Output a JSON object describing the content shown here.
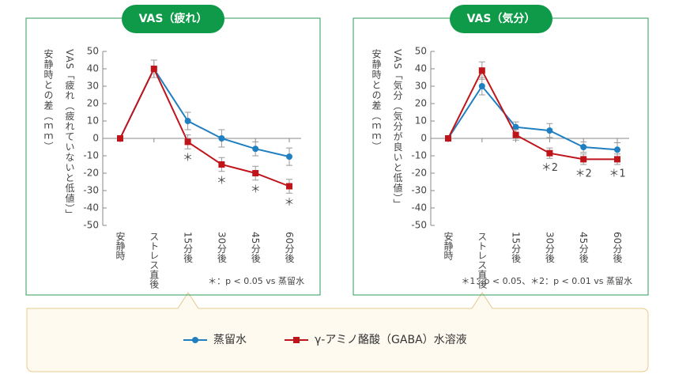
{
  "chart_data": [
    {
      "type": "line",
      "title": "VAS（疲れ）",
      "y_label": [
        "VAS「疲れ（疲れていないと低値）」",
        "安静時との差（ｍｍ）"
      ],
      "categories": [
        "安静時",
        "ストレス直後",
        "15分後",
        "30分後",
        "45分後",
        "60分後"
      ],
      "series": [
        {
          "name": "蒸留水",
          "color": "#1f7fc1",
          "marker": "circle",
          "values": [
            0,
            40,
            10,
            0,
            -6,
            -10.5
          ],
          "errors": [
            0,
            5,
            5,
            5,
            4,
            5
          ]
        },
        {
          "name": "γ-アミノ酪酸（GABA）水溶液",
          "color": "#c0141b",
          "marker": "square",
          "values": [
            0,
            40,
            -2,
            -15,
            -20,
            -27.5
          ],
          "errors": [
            0,
            5,
            4,
            4,
            4,
            4
          ]
        }
      ],
      "annotations": [
        null,
        null,
        "＊",
        "＊",
        "＊",
        "＊"
      ],
      "ylim": [
        -50,
        50
      ],
      "yticks": [
        -50,
        -40,
        -30,
        -20,
        -10,
        0,
        10,
        20,
        30,
        40,
        50
      ],
      "footnote": "＊：p < 0.05 vs 蒸留水"
    },
    {
      "type": "line",
      "title": "VAS（気分）",
      "y_label": [
        "VAS「気分（気分が良いと低値）」",
        "安静時との差（ｍｍ）"
      ],
      "categories": [
        "安静時",
        "ストレス直後",
        "15分後",
        "30分後",
        "45分後",
        "60分後"
      ],
      "series": [
        {
          "name": "蒸留水",
          "color": "#1f7fc1",
          "marker": "circle",
          "values": [
            0,
            30,
            6.5,
            4.5,
            -5,
            -6.5
          ],
          "errors": [
            0,
            5,
            3,
            4,
            3,
            4
          ]
        },
        {
          "name": "γ-アミノ酪酸（GABA）水溶液",
          "color": "#c0141b",
          "marker": "square",
          "values": [
            0,
            39,
            2,
            -8.5,
            -12,
            -12
          ],
          "errors": [
            0,
            5,
            3,
            3,
            3,
            3
          ]
        }
      ],
      "annotations": [
        null,
        null,
        null,
        "＊2",
        "＊2",
        "＊1"
      ],
      "ylim": [
        -50,
        50
      ],
      "yticks": [
        -50,
        -40,
        -30,
        -20,
        -10,
        0,
        10,
        20,
        30,
        40,
        50
      ],
      "footnote": "＊1：p < 0.05、＊2：p < 0.01 vs 蒸留水"
    }
  ]
}
